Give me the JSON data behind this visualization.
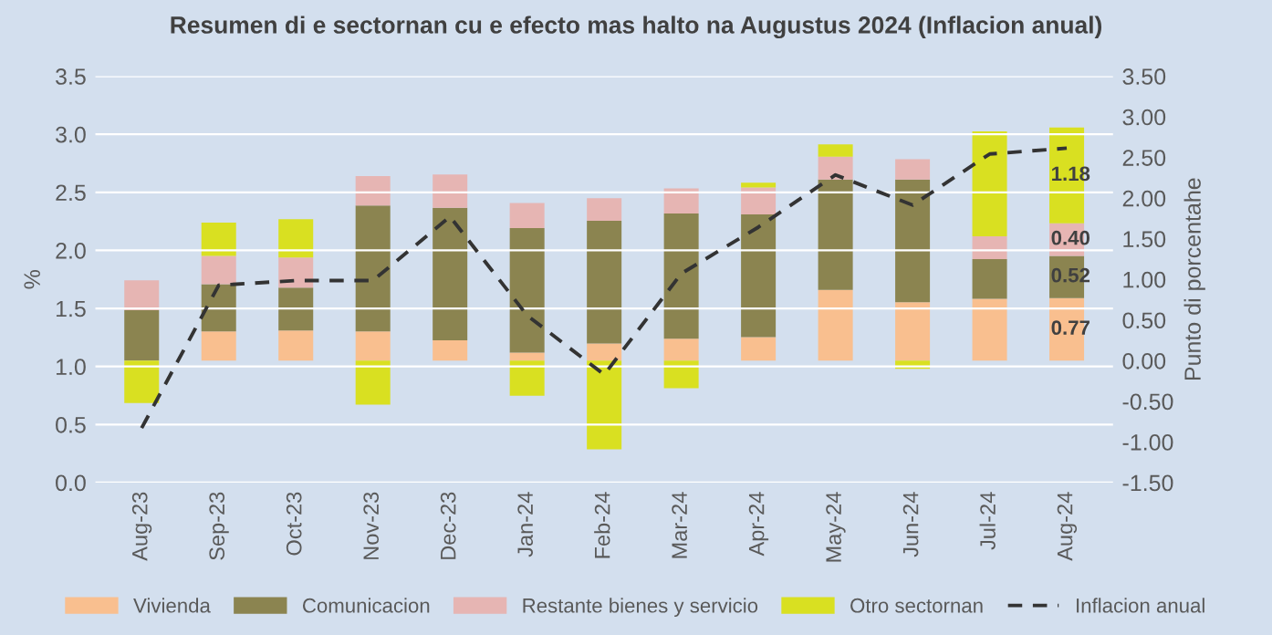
{
  "chart_data": {
    "type": "bar",
    "stacked": true,
    "title": "Resumen di e sectornan cu e efecto mas halto na Augustus 2024 (Inflacion anual)",
    "ylabel": "%",
    "y2label": "Punto di porcentahe",
    "categories": [
      "Aug-23",
      "Sep-23",
      "Oct-23",
      "Nov-23",
      "Dec-23",
      "Jan-24",
      "Feb-24",
      "Mar-24",
      "Apr-24",
      "May-24",
      "Jun-24",
      "Jul-24",
      "Aug-24"
    ],
    "ylim": [
      0,
      3.5
    ],
    "yticks": [
      {
        "value": 0,
        "label": "0.0"
      },
      {
        "value": 0.5,
        "label": "0.5"
      },
      {
        "value": 1,
        "label": "1.0"
      },
      {
        "value": 1.5,
        "label": "1.5"
      },
      {
        "value": 2,
        "label": "2.0"
      },
      {
        "value": 2.5,
        "label": "2.5"
      },
      {
        "value": 3,
        "label": "3.0"
      },
      {
        "value": 3.5,
        "label": "3.5"
      }
    ],
    "y2lim": [
      -1.5,
      3.5
    ],
    "y2ticks": [
      {
        "value": -1.5,
        "label": "-1.50"
      },
      {
        "value": -1,
        "label": "-1.00"
      },
      {
        "value": -0.5,
        "label": "-0.50"
      },
      {
        "value": 0,
        "label": "0.00"
      },
      {
        "value": 0.5,
        "label": "0.50"
      },
      {
        "value": 1,
        "label": "1.00"
      },
      {
        "value": 1.5,
        "label": "1.50"
      },
      {
        "value": 2,
        "label": "2.00"
      },
      {
        "value": 2.5,
        "label": "2.50"
      },
      {
        "value": 3,
        "label": "3.00"
      },
      {
        "value": 3.5,
        "label": "3.50"
      }
    ],
    "grid": "y",
    "legend": "bottom",
    "series": [
      {
        "name": "Vivienda",
        "axis": "y2",
        "color": "#f9bf8f",
        "values": [
          0,
          0.36,
          0.37,
          0.36,
          0.25,
          0.1,
          0.21,
          0.27,
          0.29,
          0.87,
          0.72,
          0.76,
          0.77
        ],
        "value_labels": [
          null,
          null,
          null,
          null,
          null,
          null,
          null,
          null,
          null,
          null,
          null,
          null,
          "0.77"
        ]
      },
      {
        "name": "Comunicacion",
        "axis": "y2",
        "color": "#8b8450",
        "values": [
          0.62,
          0.58,
          0.53,
          1.55,
          1.63,
          1.53,
          1.51,
          1.54,
          1.51,
          1.36,
          1.51,
          0.49,
          0.52
        ],
        "value_labels": [
          null,
          null,
          null,
          null,
          null,
          null,
          null,
          null,
          null,
          null,
          null,
          null,
          "0.52"
        ]
      },
      {
        "name": "Restante bienes y servicio",
        "axis": "y2",
        "color": "#e6b5b3",
        "values": [
          0.37,
          0.35,
          0.37,
          0.36,
          0.41,
          0.31,
          0.28,
          0.31,
          0.33,
          0.28,
          0.25,
          0.28,
          0.4
        ],
        "value_labels": [
          null,
          null,
          null,
          null,
          null,
          null,
          null,
          null,
          null,
          null,
          null,
          null,
          "0.40"
        ]
      },
      {
        "name": "Otro sectornan",
        "axis": "y2",
        "color": "#d9e021",
        "values": [
          -0.52,
          0.41,
          0.47,
          -0.54,
          0,
          -0.43,
          -1.09,
          -0.34,
          0.06,
          0.15,
          -0.1,
          1.29,
          1.18
        ],
        "value_labels": [
          null,
          null,
          null,
          null,
          null,
          null,
          null,
          null,
          null,
          null,
          null,
          null,
          "1.18"
        ]
      },
      {
        "name": "Inflacion anual",
        "type": "line",
        "axis": "y",
        "color": "#333333",
        "line_style": "dashed",
        "values": [
          0.47,
          1.7,
          1.74,
          1.74,
          2.29,
          1.44,
          0.93,
          1.8,
          2.2,
          2.65,
          2.39,
          2.83,
          2.88
        ]
      }
    ]
  }
}
